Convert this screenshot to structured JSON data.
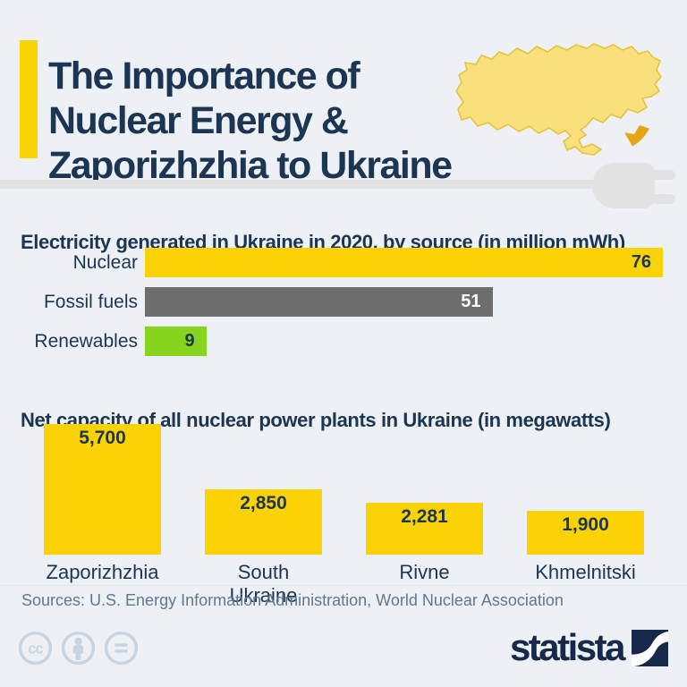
{
  "page": {
    "background": "#edf1f6",
    "accent_color": "#fbd206",
    "navy": "#1b3553"
  },
  "header": {
    "title": "The Importance of\nNuclear Energy &\nZaporizhzhia to Ukraine"
  },
  "icons": {
    "header_illustration": "ukraine-map-with-radiation-symbol",
    "divider_illustration": "power-plug",
    "license": [
      "cc-icon",
      "attribution-icon",
      "equals-icon"
    ],
    "brand_mark": "statista-swoosh-square"
  },
  "chart_data": [
    {
      "type": "bar",
      "orientation": "horizontal",
      "title": "Electricity generated in Ukraine in 2020, by source (in million mWh)",
      "categories": [
        "Nuclear",
        "Fossil fuels",
        "Renewables"
      ],
      "values": [
        76,
        51,
        9
      ],
      "value_labels": [
        "76",
        "51",
        "9"
      ],
      "xlim": [
        0,
        76
      ],
      "bar_colors": [
        "#fbd206",
        "#6e6e6e",
        "#86d41e"
      ],
      "value_label_colors": [
        "#1b3553",
        "#ffffff",
        "#1b3553"
      ],
      "grid": false,
      "legend": "none"
    },
    {
      "type": "bar",
      "orientation": "vertical",
      "title": "Net capacity of all nuclear power plants in Ukraine (in megawatts)",
      "categories": [
        "Zaporizhzhia",
        "South Ukraine",
        "Rivne",
        "Khmelnitski"
      ],
      "values": [
        5700,
        2850,
        2281,
        1900
      ],
      "value_labels": [
        "5,700",
        "2,850",
        "2,281",
        "1,900"
      ],
      "ylim": [
        0,
        5700
      ],
      "bar_colors": [
        "#fbd206",
        "#fbd206",
        "#fbd206",
        "#fbd206"
      ],
      "value_label_colors": [
        "#1b3553",
        "#1b3553",
        "#1b3553",
        "#1b3553"
      ],
      "grid": false,
      "legend": "none"
    }
  ],
  "sources": {
    "text": "Sources: U.S. Energy Information Administration, World Nuclear Association"
  },
  "footer": {
    "brand": "statista"
  }
}
